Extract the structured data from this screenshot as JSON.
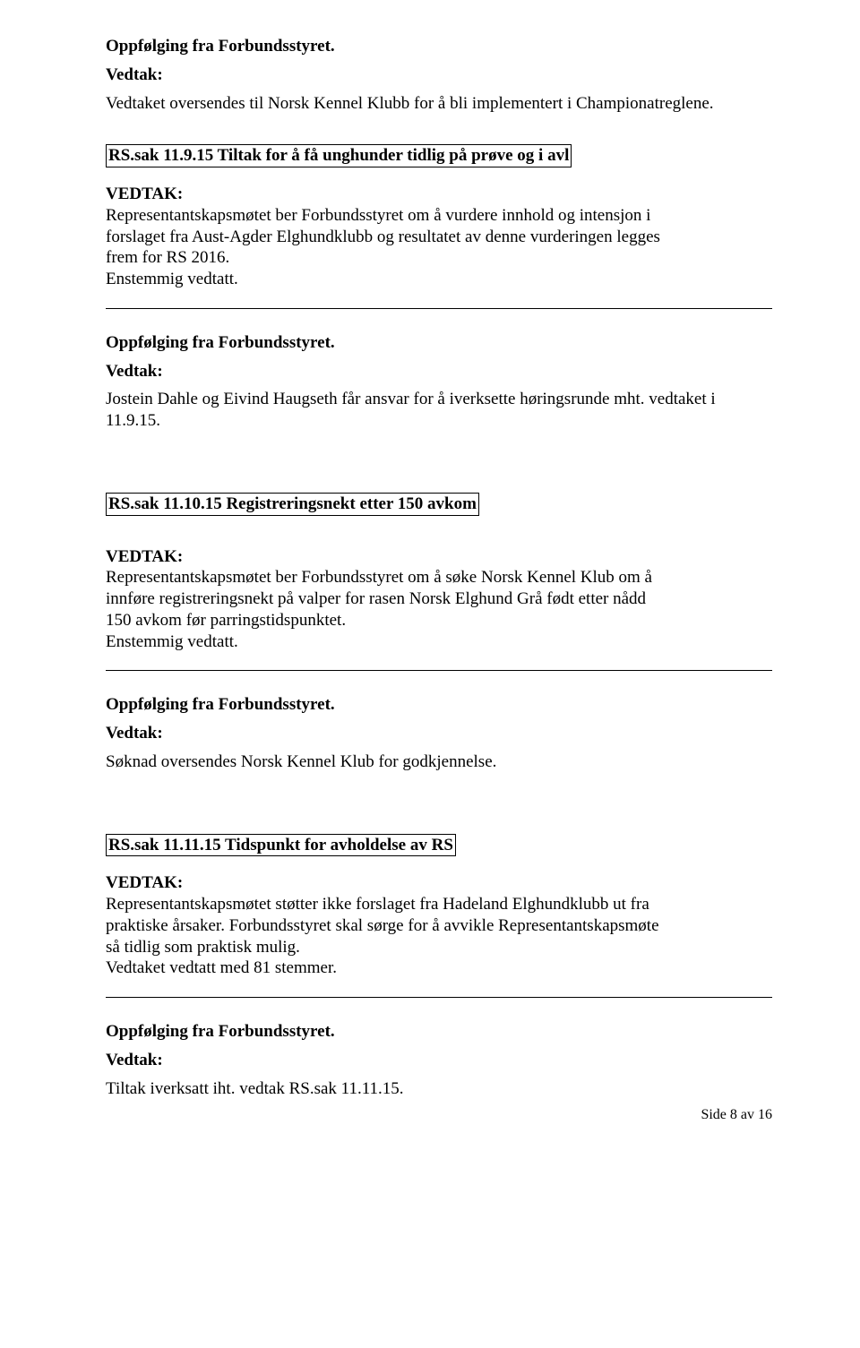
{
  "section1": {
    "oppfolging": "Oppfølging fra Forbundsstyret.",
    "vedtak_label": "Vedtak:",
    "vedtak_text": "Vedtaket oversendes til Norsk Kennel Klubb for å bli implementert i Championatreglene."
  },
  "section2": {
    "title": "RS.sak 11.9.15 Tiltak for å få unghunder tidlig på prøve og i avl",
    "vedtak_prefix": "VEDTAK:",
    "vedtak_body": "Representantskapsmøtet ber Forbundsstyret om å vurdere innhold og intensjon i forslaget fra Aust-Agder Elghundklubb og resultatet av denne vurderingen legges frem for RS 2016.",
    "enstemmig": "Enstemmig vedtatt.",
    "oppfolging": "Oppfølging fra Forbundsstyret.",
    "vedtak_label2": "Vedtak:",
    "vedtak_text2": "Jostein Dahle og Eivind Haugseth får ansvar for å iverksette høringsrunde mht. vedtaket i 11.9.15."
  },
  "section3": {
    "title": "RS.sak 11.10.15 Registreringsnekt etter 150 avkom",
    "vedtak_prefix": "VEDTAK:",
    "vedtak_body1": "Representantskapsmøtet ber Forbundsstyret om å søke Norsk Kennel Klub om å innføre registreringsnekt på valper for rasen Norsk Elghund Grå født etter nådd 150 avkom før parringstidspunktet.",
    "enstemmig": "Enstemmig vedtatt.",
    "oppfolging": "Oppfølging fra Forbundsstyret.",
    "vedtak_label2": "Vedtak:",
    "vedtak_text2": "Søknad oversendes Norsk Kennel Klub for godkjennelse."
  },
  "section4": {
    "title": "RS.sak 11.11.15 Tidspunkt for avholdelse av RS",
    "vedtak_prefix": "VEDTAK:",
    "vedtak_body": "Representantskapsmøtet støtter ikke forslaget fra Hadeland Elghundklubb ut fra praktiske årsaker. Forbundsstyret skal sørge for å avvikle Representantskapsmøte så tidlig som praktisk mulig.",
    "stemmer": "Vedtaket vedtatt med 81 stemmer.",
    "oppfolging": "Oppfølging fra Forbundsstyret.",
    "vedtak_label2": "Vedtak:",
    "vedtak_text2": "Tiltak iverksatt iht. vedtak RS.sak 11.11.15."
  },
  "footer": "Side 8 av 16"
}
